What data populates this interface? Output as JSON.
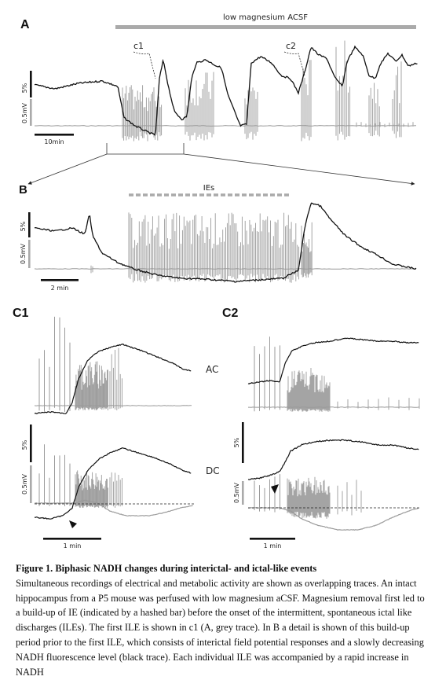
{
  "panels": {
    "A": {
      "letter": "A",
      "condition_label": "low magnesium ACSF",
      "event_labels": [
        "c1",
        "c2"
      ],
      "scale_fluorescence": "5%",
      "scale_voltage": "0.5mV",
      "scale_time": "10min"
    },
    "B": {
      "letter": "B",
      "period_label": "IEs",
      "scale_fluorescence": "5%",
      "scale_voltage": "0.5mV",
      "scale_time": "2 min"
    },
    "C1": {
      "letter": "C1",
      "ac_label": "AC",
      "dc_label": "DC",
      "scale_fluorescence": "5%",
      "scale_voltage": "0.5mV",
      "scale_time": "1 min"
    },
    "C2": {
      "letter": "C2",
      "scale_fluorescence": "5%",
      "scale_voltage": "0.5mV",
      "scale_time": "1 min"
    }
  },
  "trace_colors": {
    "nadh": "#111111",
    "field_potential": "#9a9a9a",
    "bars": "#aaaaaa"
  },
  "caption": {
    "title": "Figure 1. Biphasic NADH changes during interictal- and ictal-like events",
    "body": "Simultaneous recordings of electrical and metabolic activity are shown as overlapping traces. An intact hippocampus from a P5 mouse was perfused with low magnesium aCSF. Magnesium removal first led to a build-up of IE (indicated by a hashed bar) before the onset of the intermittent, spontaneous ictal like discharges (ILEs). The first ILE is shown in c1 (A, grey trace). In B a detail is shown of this build-up period prior to the first ILE, which consists of interictal field potential responses and a slowly decreasing NADH fluorescence level (black trace). Each individual ILE was accompanied by a rapid increase in NADH"
  }
}
